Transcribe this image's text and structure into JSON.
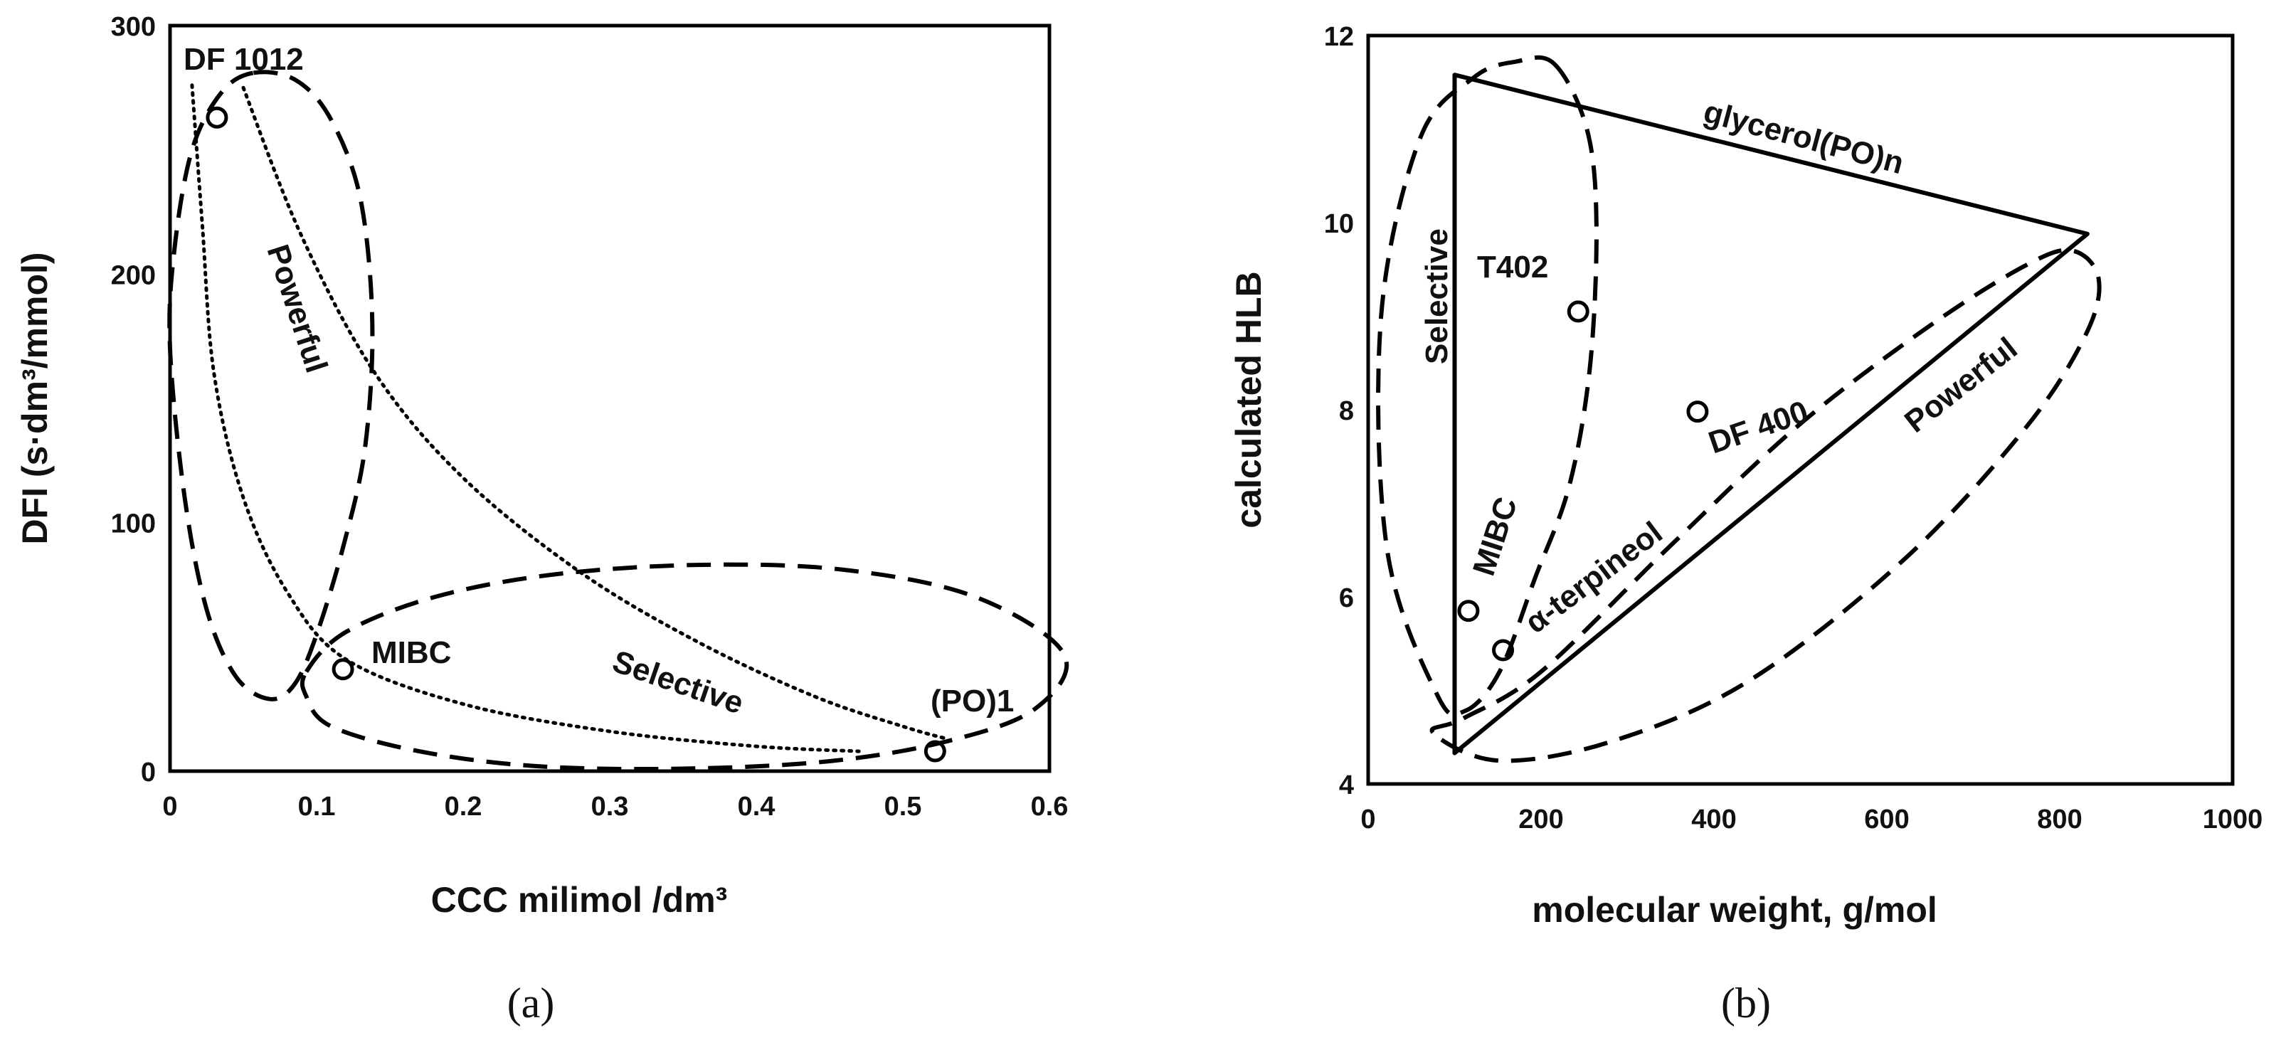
{
  "chart_data": [
    {
      "type": "scatter",
      "panel_label": "(a)",
      "xlabel": "CCC milimol /dm³",
      "ylabel": "DFI (s·dm³/mmol)",
      "xlim": [
        0,
        0.6
      ],
      "ylim": [
        0,
        300
      ],
      "xticks": [
        0,
        0.1,
        0.2,
        0.3,
        0.4,
        0.5,
        0.6
      ],
      "yticks": [
        0,
        100,
        200,
        300
      ],
      "xtick_labels": [
        "0",
        "0.1",
        "0.2",
        "0.3",
        "0.4",
        "0.5",
        "0.6"
      ],
      "ytick_labels": [
        "0",
        "100",
        "200",
        "300"
      ],
      "points": [
        {
          "label": "DF 1012",
          "x": 0.032,
          "y": 263
        },
        {
          "label": "MIBC",
          "x": 0.118,
          "y": 41
        },
        {
          "label": "(PO)1",
          "x": 0.522,
          "y": 8
        }
      ],
      "dotted_curves": [
        [
          [
            0.015,
            276
          ],
          [
            0.022,
            220
          ],
          [
            0.03,
            160
          ],
          [
            0.05,
            110
          ],
          [
            0.08,
            72
          ],
          [
            0.12,
            45
          ],
          [
            0.2,
            27
          ],
          [
            0.3,
            16
          ],
          [
            0.4,
            10
          ],
          [
            0.47,
            8
          ]
        ],
        [
          [
            0.05,
            275
          ],
          [
            0.09,
            215
          ],
          [
            0.14,
            160
          ],
          [
            0.2,
            118
          ],
          [
            0.28,
            80
          ],
          [
            0.36,
            52
          ],
          [
            0.44,
            30
          ],
          [
            0.5,
            18
          ],
          [
            0.53,
            13
          ]
        ]
      ],
      "regions": [
        {
          "label": "Powerful",
          "outline": [
            [
              0.057,
              281
            ],
            [
              0.086,
              278
            ],
            [
              0.11,
              262
            ],
            [
              0.13,
              230
            ],
            [
              0.138,
              180
            ],
            [
              0.133,
              130
            ],
            [
              0.118,
              90
            ],
            [
              0.1,
              55
            ],
            [
              0.085,
              35
            ],
            [
              0.068,
              29
            ],
            [
              0.045,
              38
            ],
            [
              0.025,
              65
            ],
            [
              0.01,
              110
            ],
            [
              0,
              170
            ],
            [
              0.003,
              210
            ],
            [
              0.015,
              250
            ],
            [
              0.035,
              273
            ],
            [
              0.057,
              281
            ]
          ]
        },
        {
          "label": "Selective",
          "outline": [
            [
              0.093,
              40
            ],
            [
              0.12,
              56
            ],
            [
              0.18,
              70
            ],
            [
              0.26,
              79
            ],
            [
              0.36,
              83
            ],
            [
              0.46,
              81
            ],
            [
              0.55,
              70
            ],
            [
              0.61,
              47
            ],
            [
              0.59,
              25
            ],
            [
              0.53,
              12
            ],
            [
              0.45,
              4
            ],
            [
              0.35,
              1
            ],
            [
              0.25,
              2
            ],
            [
              0.17,
              8
            ],
            [
              0.11,
              18
            ],
            [
              0.093,
              30
            ],
            [
              0.093,
              40
            ]
          ]
        }
      ],
      "region_labels": [
        "Powerful",
        "Selective"
      ]
    },
    {
      "type": "scatter",
      "panel_label": "(b)",
      "xlabel": "molecular weight, g/mol",
      "ylabel": "calculated  HLB",
      "xlim": [
        0,
        1000
      ],
      "ylim": [
        4,
        12
      ],
      "xticks": [
        0,
        200,
        400,
        600,
        800,
        1000
      ],
      "yticks": [
        4,
        6,
        8,
        10,
        12
      ],
      "xtick_labels": [
        "0",
        "200",
        "400",
        "600",
        "800",
        "1000"
      ],
      "ytick_labels": [
        "4",
        "6",
        "8",
        "10",
        "12"
      ],
      "points": [
        {
          "label": "T402",
          "x": 243,
          "y": 9.05
        },
        {
          "label": "DF 400",
          "x": 381,
          "y": 7.98
        },
        {
          "label": "MIBC",
          "x": 116,
          "y": 5.85
        },
        {
          "label": "α-terpineol",
          "x": 156,
          "y": 5.43
        }
      ],
      "triangle": {
        "label": "glycerol(PO)n",
        "vertices": [
          [
            100,
            11.58
          ],
          [
            832,
            9.88
          ],
          [
            100,
            4.33
          ]
        ]
      },
      "regions": [
        {
          "label": "Selective",
          "outline": [
            [
              215,
              11.7
            ],
            [
              253,
              11.0
            ],
            [
              264,
              10.0
            ],
            [
              257,
              8.5
            ],
            [
              233,
              7.2
            ],
            [
              193,
              6.2
            ],
            [
              152,
              5.2
            ],
            [
              112,
              4.78
            ],
            [
              80,
              4.95
            ],
            [
              22,
              6.5
            ],
            [
              15,
              9.0
            ],
            [
              60,
              10.9
            ],
            [
              122,
              11.55
            ],
            [
              170,
              11.72
            ],
            [
              215,
              11.7
            ]
          ]
        },
        {
          "label": "Powerful",
          "outline": [
            [
              75,
              4.55
            ],
            [
              110,
              4.7
            ],
            [
              200,
              5.2
            ],
            [
              350,
              6.55
            ],
            [
              500,
              7.85
            ],
            [
              650,
              8.9
            ],
            [
              762,
              9.55
            ],
            [
              815,
              9.7
            ],
            [
              845,
              9.4
            ],
            [
              830,
              8.8
            ],
            [
              760,
              7.8
            ],
            [
              620,
              6.4
            ],
            [
              440,
              5.1
            ],
            [
              280,
              4.45
            ],
            [
              150,
              4.25
            ],
            [
              75,
              4.55
            ]
          ]
        }
      ],
      "region_labels": [
        "Selective",
        "Powerful"
      ]
    }
  ]
}
